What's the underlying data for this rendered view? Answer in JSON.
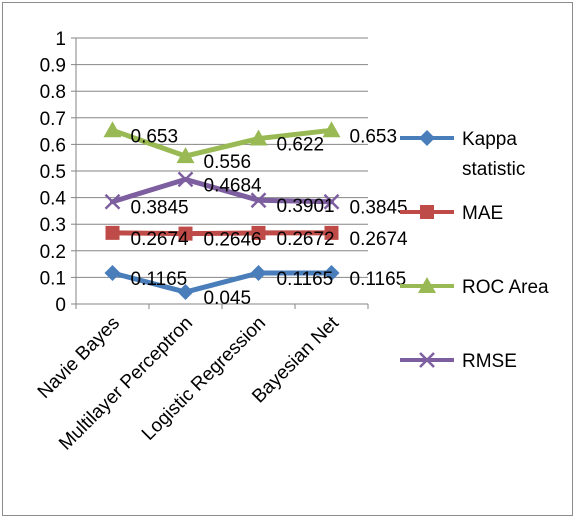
{
  "chart_data": {
    "type": "line",
    "categories": [
      "Navie Bayes",
      "Multilayer Perceptron",
      "Logistic Regression",
      "Bayesian Net"
    ],
    "ylim": [
      0,
      1
    ],
    "yticks": [
      "0",
      "0.1",
      "0.2",
      "0.3",
      "0.4",
      "0.5",
      "0.6",
      "0.7",
      "0.8",
      "0.9",
      "1"
    ],
    "grid": true,
    "legend_position": "right",
    "series": [
      {
        "name": "Kappa statistic",
        "name_lines": [
          "Kappa",
          "statistic"
        ],
        "values": [
          0.1165,
          0.045,
          0.1165,
          0.1165
        ],
        "labels": [
          "0.1165",
          "0.045",
          "0.1165",
          "0.1165"
        ],
        "color": "#4a7ebb",
        "marker": "diamond"
      },
      {
        "name": "MAE",
        "name_lines": [
          "MAE"
        ],
        "values": [
          0.2674,
          0.2646,
          0.2672,
          0.2674
        ],
        "labels": [
          "0.2674",
          "0.2646",
          "0.2672",
          "0.2674"
        ],
        "color": "#be4b48",
        "marker": "square"
      },
      {
        "name": "ROC Area",
        "name_lines": [
          "ROC Area"
        ],
        "values": [
          0.653,
          0.556,
          0.622,
          0.653
        ],
        "labels": [
          "0.653",
          "0.556",
          "0.622",
          "0.653"
        ],
        "color": "#98b954",
        "marker": "triangle"
      },
      {
        "name": "RMSE",
        "name_lines": [
          "RMSE"
        ],
        "values": [
          0.3845,
          0.4684,
          0.3901,
          0.3845
        ],
        "labels": [
          "0.3845",
          "0.4684",
          "0.3901",
          "0.3845"
        ],
        "color": "#7d5fa0",
        "marker": "x"
      }
    ]
  }
}
